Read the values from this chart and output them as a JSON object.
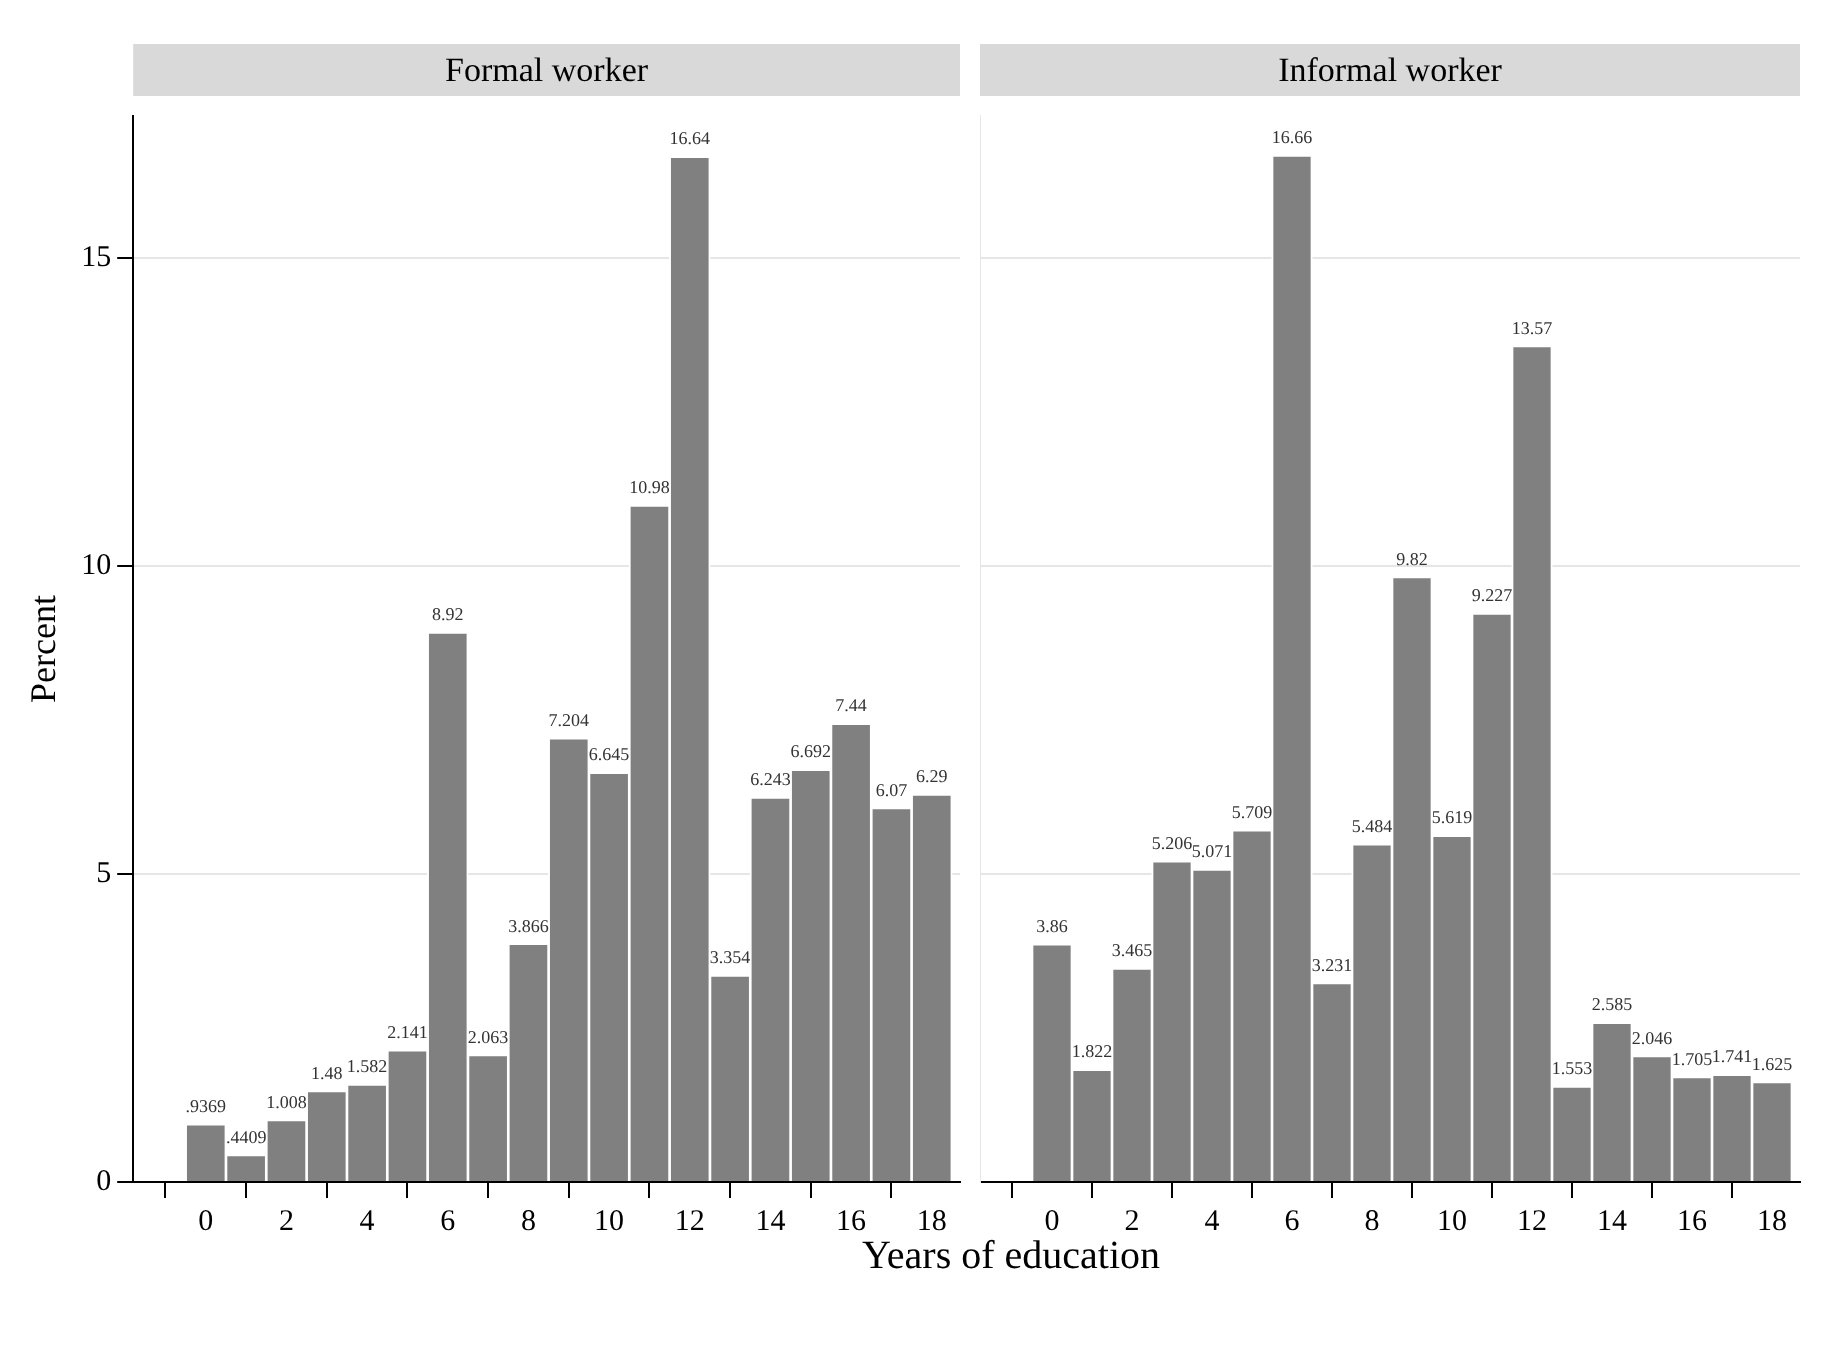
{
  "chart_data": [
    {
      "type": "histogram",
      "title": "Formal worker",
      "ylabel": "Percent",
      "xlabel": "Years of education",
      "bins": [
        -0.5,
        0.5,
        1.5,
        2.5,
        3.5,
        4.5,
        5.5,
        6.5,
        7.5,
        8.5,
        9.5,
        10.5,
        11.5,
        12.5,
        13.5,
        14.5,
        15.5,
        16.5,
        17.5,
        18.5
      ],
      "values": [
        0.9369,
        0.4409,
        1.008,
        1.48,
        1.582,
        2.141,
        8.92,
        2.063,
        3.866,
        7.204,
        6.645,
        10.98,
        16.64,
        3.354,
        6.243,
        6.692,
        7.44,
        6.07,
        6.29
      ],
      "value_labels": [
        ".9369",
        ".4409",
        "1.008",
        "1.48",
        "1.582",
        "2.141",
        "8.92",
        "2.063",
        "3.866",
        "7.204",
        "6.645",
        "10.98",
        "16.64",
        "3.354",
        "6.243",
        "6.692",
        "7.44",
        "6.07",
        "6.29"
      ],
      "color": "#808080",
      "xlim": [
        -1.8,
        18.7
      ],
      "xticks": [
        0,
        2,
        4,
        6,
        8,
        10,
        12,
        14,
        16,
        18
      ],
      "ylim": [
        0,
        17.3
      ],
      "yticks": [
        0,
        5,
        10,
        15
      ],
      "grid": "y"
    },
    {
      "type": "histogram",
      "title": "Informal worker",
      "bins": [
        -0.5,
        0.5,
        1.5,
        2.5,
        3.5,
        4.5,
        5.5,
        6.5,
        7.5,
        8.5,
        9.5,
        10.5,
        11.5,
        12.5,
        13.5,
        14.5,
        15.5,
        16.5,
        17.5,
        18.5
      ],
      "values": [
        3.86,
        1.822,
        3.465,
        5.206,
        5.071,
        5.709,
        16.66,
        3.231,
        5.484,
        9.82,
        5.619,
        9.227,
        13.57,
        1.553,
        2.585,
        2.046,
        1.705,
        1.741,
        1.625
      ],
      "value_labels": [
        "3.86",
        "1.822",
        "3.465",
        "5.206",
        "5.071",
        "5.709",
        "16.66",
        "3.231",
        "5.484",
        "9.82",
        "5.619",
        "9.227",
        "13.57",
        "1.553",
        "2.585",
        "2.046",
        "1.705",
        "1.741",
        "1.625"
      ],
      "color": "#808080",
      "xlim": [
        -1.8,
        18.7
      ],
      "xticks": [
        0,
        2,
        4,
        6,
        8,
        10,
        12,
        14,
        16,
        18
      ],
      "ylim": [
        0,
        17.3
      ],
      "yticks": [
        0,
        5,
        10,
        15
      ],
      "grid": "y",
      "tick_labels": "x"
    }
  ]
}
